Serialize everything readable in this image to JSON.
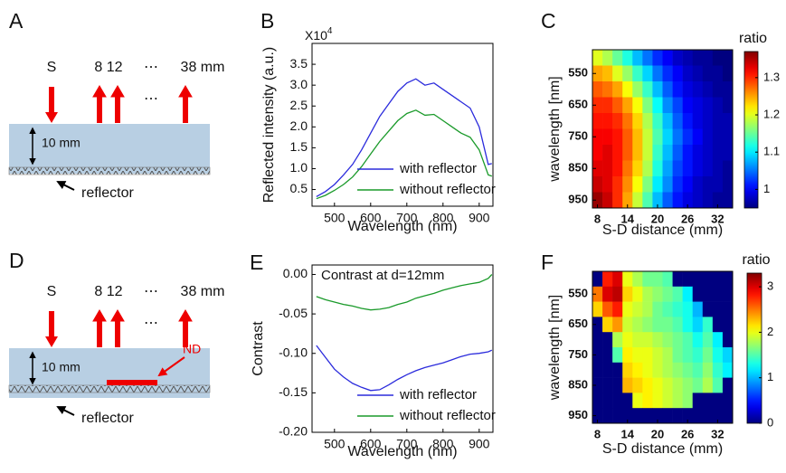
{
  "panel_labels": [
    "A",
    "B",
    "C",
    "D",
    "E",
    "F"
  ],
  "diagrams": [
    {
      "source": "S",
      "detectors": "8 12",
      "ellipsis": "⋯",
      "last_detector": "38 mm",
      "depth": "10 mm",
      "reflector": "reflector"
    },
    {
      "source": "S",
      "detectors": "8 12",
      "ellipsis": "⋯",
      "last_detector": "38 mm",
      "depth": "10 mm",
      "reflector": "reflector",
      "filter": "ND"
    }
  ],
  "chart_data": [
    {
      "type": "line",
      "xlabel": "Wavelength (nm)",
      "ylabel": "Reflected intensity (a.u.)",
      "scale_label": "X10",
      "scale_exponent": "4",
      "x": [
        450,
        475,
        500,
        525,
        550,
        575,
        600,
        625,
        650,
        675,
        700,
        725,
        750,
        775,
        800,
        825,
        850,
        875,
        900,
        925,
        935
      ],
      "series": [
        {
          "name": "with reflector",
          "color": "#2b2bdc",
          "values": [
            0.33,
            0.45,
            0.62,
            0.85,
            1.1,
            1.45,
            1.85,
            2.25,
            2.55,
            2.85,
            3.05,
            3.15,
            3.0,
            3.05,
            2.9,
            2.75,
            2.6,
            2.45,
            2.0,
            1.1,
            1.12
          ]
        },
        {
          "name": "without reflector",
          "color": "#1a9a2a",
          "values": [
            0.28,
            0.36,
            0.48,
            0.62,
            0.8,
            1.05,
            1.35,
            1.65,
            1.9,
            2.15,
            2.32,
            2.4,
            2.28,
            2.3,
            2.15,
            2.0,
            1.85,
            1.75,
            1.45,
            0.85,
            0.82
          ]
        }
      ],
      "xlim": [
        438,
        938
      ],
      "ylim": [
        0.1,
        4.0
      ],
      "xticks": [
        500,
        600,
        700,
        800,
        900
      ],
      "yticks": [
        0.5,
        {
          "value": 1,
          "label": "1.0"
        },
        1.5,
        {
          "value": 2,
          "label": "2.0"
        },
        2.5,
        {
          "value": 3,
          "label": "3.0"
        },
        3.5
      ],
      "legend": "lower right"
    },
    {
      "type": "heatmap",
      "xlabel": "S-D distance (mm)",
      "ylabel": "wavelength [nm]",
      "colorbar_label": "ratio",
      "x": [
        8,
        10,
        12,
        14,
        16,
        18,
        20,
        22,
        24,
        26,
        28,
        30,
        32,
        34
      ],
      "y": [
        500,
        550,
        600,
        650,
        700,
        750,
        800,
        850,
        900,
        950
      ],
      "values": [
        [
          1.2,
          1.18,
          1.15,
          1.12,
          1.08,
          1.05,
          1.02,
          1.0,
          0.98,
          0.97,
          0.96,
          0.96,
          0.95,
          0.95
        ],
        [
          1.25,
          1.24,
          1.2,
          1.17,
          1.13,
          1.09,
          1.05,
          1.02,
          1.0,
          0.98,
          0.97,
          0.96,
          0.96,
          0.95
        ],
        [
          1.28,
          1.27,
          1.25,
          1.21,
          1.17,
          1.13,
          1.08,
          1.04,
          1.01,
          0.99,
          0.98,
          0.97,
          0.96,
          0.96
        ],
        [
          1.3,
          1.3,
          1.28,
          1.25,
          1.21,
          1.16,
          1.11,
          1.06,
          1.03,
          1.0,
          0.99,
          0.98,
          0.97,
          0.96
        ],
        [
          1.31,
          1.31,
          1.3,
          1.27,
          1.23,
          1.18,
          1.13,
          1.08,
          1.04,
          1.01,
          0.99,
          0.98,
          0.97,
          0.97
        ],
        [
          1.32,
          1.32,
          1.31,
          1.28,
          1.24,
          1.19,
          1.14,
          1.09,
          1.05,
          1.02,
          1.0,
          0.98,
          0.97,
          0.97
        ],
        [
          1.32,
          1.33,
          1.31,
          1.28,
          1.24,
          1.19,
          1.13,
          1.08,
          1.04,
          1.01,
          0.99,
          0.98,
          0.97,
          0.97
        ],
        [
          1.33,
          1.33,
          1.31,
          1.27,
          1.23,
          1.18,
          1.12,
          1.07,
          1.03,
          1.01,
          0.99,
          0.98,
          0.97,
          0.96
        ],
        [
          1.34,
          1.33,
          1.3,
          1.26,
          1.21,
          1.16,
          1.1,
          1.06,
          1.02,
          1.0,
          0.98,
          0.97,
          0.97,
          0.96
        ],
        [
          1.36,
          1.34,
          1.3,
          1.25,
          1.19,
          1.14,
          1.08,
          1.04,
          1.01,
          0.99,
          0.98,
          0.97,
          0.96,
          0.96
        ]
      ],
      "xlim": [
        7,
        35
      ],
      "ylim": [
        975,
        475
      ],
      "xticks": [
        8,
        14,
        20,
        26,
        32
      ],
      "yticks": [
        550,
        650,
        750,
        850,
        950
      ],
      "clim": [
        0.95,
        1.37
      ],
      "cticks": [
        1,
        1.1,
        1.2,
        1.3
      ]
    },
    {
      "type": "line",
      "xlabel": "Wavelength (nm)",
      "ylabel": "Contrast",
      "annotation": "Contrast at d=12mm",
      "x": [
        450,
        475,
        500,
        525,
        550,
        575,
        600,
        625,
        650,
        675,
        700,
        725,
        750,
        775,
        800,
        825,
        850,
        875,
        900,
        925,
        935
      ],
      "series": [
        {
          "name": "with reflector",
          "color": "#2b2bdc",
          "values": [
            -0.09,
            -0.105,
            -0.12,
            -0.13,
            -0.138,
            -0.143,
            -0.147,
            -0.146,
            -0.14,
            -0.133,
            -0.127,
            -0.122,
            -0.118,
            -0.115,
            -0.112,
            -0.108,
            -0.104,
            -0.101,
            -0.1,
            -0.098,
            -0.096
          ]
        },
        {
          "name": "without reflector",
          "color": "#1a9a2a",
          "values": [
            -0.028,
            -0.032,
            -0.035,
            -0.038,
            -0.04,
            -0.043,
            -0.045,
            -0.044,
            -0.042,
            -0.038,
            -0.035,
            -0.03,
            -0.027,
            -0.024,
            -0.02,
            -0.017,
            -0.014,
            -0.012,
            -0.01,
            -0.005,
            0.0
          ]
        }
      ],
      "xlim": [
        438,
        938
      ],
      "ylim": [
        -0.2,
        0.012
      ],
      "xticks": [
        500,
        600,
        700,
        800,
        900
      ],
      "yticks": [
        {
          "value": -0.2,
          "label": "-0.20"
        },
        {
          "value": -0.15,
          "label": "-0.15"
        },
        {
          "value": -0.1,
          "label": "-0.10"
        },
        {
          "value": -0.05,
          "label": "-0.05"
        },
        {
          "value": 0,
          "label": "0.00"
        }
      ],
      "legend": "lower right"
    },
    {
      "type": "heatmap",
      "xlabel": "S-D distance (mm)",
      "ylabel": "wavelength [nm]",
      "colorbar_label": "ratio",
      "x": [
        8,
        10,
        12,
        14,
        16,
        18,
        20,
        22,
        24,
        26,
        28,
        30,
        32,
        34
      ],
      "y": [
        500,
        550,
        600,
        650,
        700,
        750,
        800,
        850,
        900,
        950
      ],
      "values": [
        [
          0,
          2.8,
          3.0,
          2.0,
          1.8,
          1.6,
          1.6,
          1.5,
          0,
          0,
          0,
          0,
          0,
          0
        ],
        [
          2.5,
          3.0,
          3.1,
          2.2,
          2.0,
          1.8,
          1.7,
          1.6,
          1.5,
          1.2,
          0,
          0,
          0,
          0
        ],
        [
          2.2,
          2.6,
          2.8,
          2.0,
          1.9,
          1.8,
          1.6,
          1.5,
          1.4,
          1.3,
          1.0,
          0,
          0,
          0
        ],
        [
          0,
          2.2,
          2.4,
          1.9,
          1.8,
          1.7,
          1.6,
          1.6,
          1.5,
          1.3,
          1.1,
          1.4,
          0,
          0
        ],
        [
          0,
          0,
          1.8,
          2.0,
          1.9,
          1.9,
          1.8,
          1.7,
          1.6,
          1.5,
          1.3,
          1.5,
          1.2,
          0
        ],
        [
          0,
          0,
          1.5,
          2.1,
          2.0,
          2.0,
          1.9,
          1.8,
          1.6,
          1.5,
          1.4,
          1.6,
          1.3,
          1.1
        ],
        [
          0,
          0,
          0,
          2.2,
          2.1,
          2.0,
          1.9,
          1.8,
          1.7,
          1.6,
          1.5,
          1.7,
          1.4,
          1.2
        ],
        [
          0,
          0,
          0,
          2.3,
          2.2,
          2.1,
          2.0,
          1.9,
          1.8,
          1.7,
          1.6,
          1.8,
          1.5,
          0
        ],
        [
          0,
          0,
          0,
          0,
          2.0,
          2.1,
          2.0,
          1.9,
          1.8,
          1.7,
          0,
          0,
          0,
          0
        ],
        [
          0,
          0,
          0,
          0,
          0,
          0,
          0,
          0,
          0,
          0,
          0,
          0,
          0,
          0
        ]
      ],
      "xlim": [
        7,
        35
      ],
      "ylim": [
        975,
        475
      ],
      "xticks": [
        8,
        14,
        20,
        26,
        32
      ],
      "yticks": [
        550,
        650,
        750,
        850,
        950
      ],
      "clim": [
        0,
        3.3
      ],
      "cticks": [
        0,
        1,
        2,
        3
      ]
    }
  ]
}
